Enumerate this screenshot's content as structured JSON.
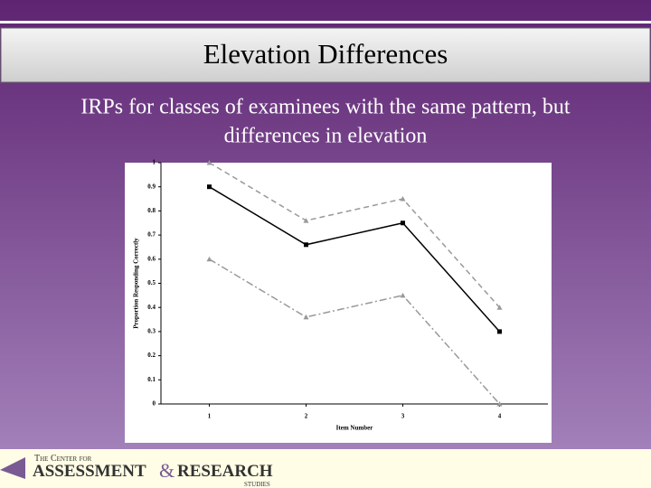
{
  "slide": {
    "title": "Elevation Differences",
    "body": [
      "IRPs for classes of examinees with the same pattern, but",
      "differences in elevation"
    ]
  },
  "footer": {
    "line1": "The Center for",
    "word1": "Assessment",
    "amp": "&",
    "word2": "Research",
    "line3": "Studies"
  },
  "chart_data": {
    "type": "line",
    "x": [
      1,
      2,
      3,
      4
    ],
    "xlabel": "Item Number",
    "ylabel": "Proportion Responding Correctly",
    "xlim": [
      0.5,
      4.5
    ],
    "xticks": [
      1,
      2,
      3,
      4
    ],
    "ylim": [
      0,
      1
    ],
    "yticks": [
      0,
      0.1,
      0.2,
      0.3,
      0.4,
      0.5,
      0.6,
      0.7,
      0.8,
      0.9,
      1
    ],
    "series": [
      {
        "color": "#999999",
        "line_style": "dashed",
        "marker": "triangle",
        "values": [
          1.0,
          0.76,
          0.85,
          0.4
        ]
      },
      {
        "color": "#000000",
        "line_style": "solid",
        "marker": "square",
        "values": [
          0.9,
          0.66,
          0.75,
          0.3
        ]
      },
      {
        "color": "#999999",
        "line_style": "dashdot",
        "marker": "triangle",
        "values": [
          0.6,
          0.36,
          0.45,
          0.0
        ]
      }
    ]
  }
}
